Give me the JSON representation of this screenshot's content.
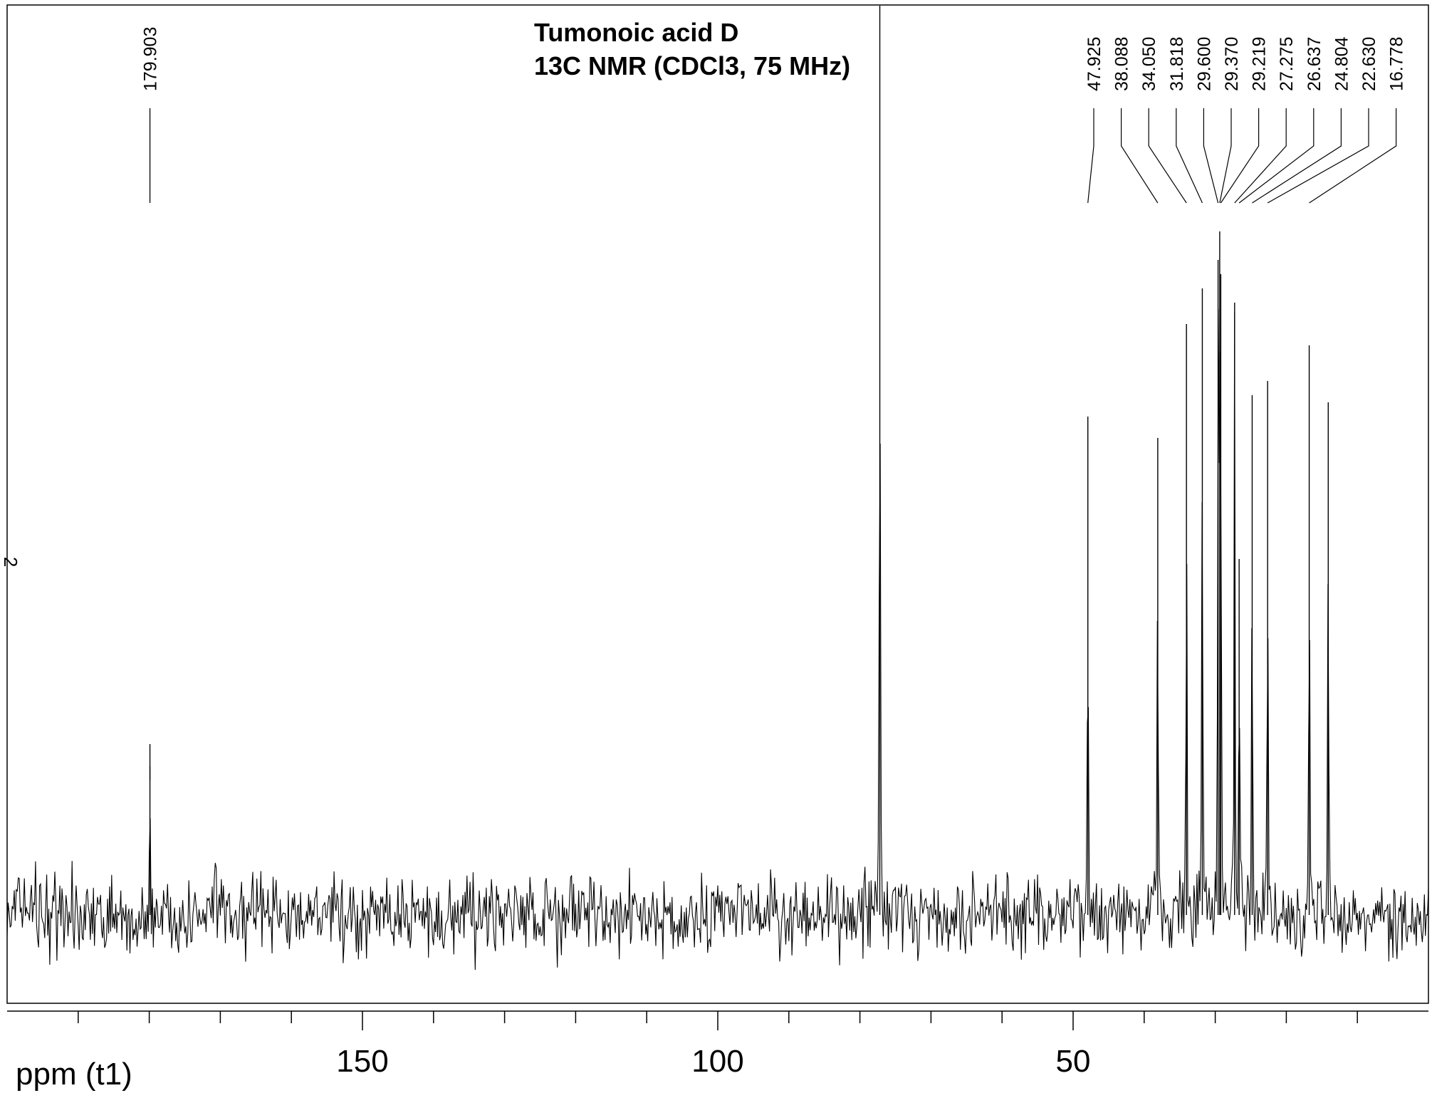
{
  "chart_data": {
    "type": "line",
    "title_lines": [
      "Tumonoic acid D",
      "13C NMR (CDCl3, 75 MHz)"
    ],
    "xlabel": "ppm (t1)",
    "side_label": "2",
    "x_direction": "reversed",
    "xlim": [
      200,
      0
    ],
    "x_major_ticks": [
      150,
      100,
      50
    ],
    "x_minor_step": 10,
    "peak_labels": [
      "179.903",
      "47.925",
      "38.088",
      "34.050",
      "31.818",
      "29.600",
      "29.370",
      "29.219",
      "27.275",
      "26.637",
      "24.804",
      "22.630",
      "16.778"
    ],
    "peaks": [
      {
        "ppm": 179.903,
        "height": 0.24
      },
      {
        "ppm": 77.2,
        "height": 1.3
      },
      {
        "ppm": 47.925,
        "height": 0.7
      },
      {
        "ppm": 38.088,
        "height": 0.67
      },
      {
        "ppm": 34.05,
        "height": 0.83
      },
      {
        "ppm": 31.818,
        "height": 0.88
      },
      {
        "ppm": 29.6,
        "height": 0.92
      },
      {
        "ppm": 29.37,
        "height": 0.96
      },
      {
        "ppm": 29.219,
        "height": 0.9
      },
      {
        "ppm": 27.275,
        "height": 0.86
      },
      {
        "ppm": 26.637,
        "height": 0.5
      },
      {
        "ppm": 24.804,
        "height": 0.73
      },
      {
        "ppm": 22.63,
        "height": 0.75
      },
      {
        "ppm": 16.778,
        "height": 0.8
      },
      {
        "ppm": 14.1,
        "height": 0.72
      }
    ],
    "noise_level": 0.06,
    "grid": false
  }
}
